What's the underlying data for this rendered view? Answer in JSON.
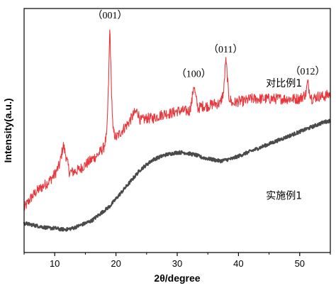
{
  "chart_data": {
    "type": "line",
    "title": "",
    "xlabel": "2θ/degree",
    "ylabel": "Intensity(a.u.)",
    "xlim": [
      5,
      55
    ],
    "xticks": [
      10,
      20,
      30,
      40,
      50
    ],
    "ylim": [
      0,
      100
    ],
    "y_tick_labels_shown": false,
    "grid": false,
    "legend": "none",
    "series": [
      {
        "name": "对比例1",
        "color": "#e8383d",
        "noise": 2.2,
        "values": [
          [
            5,
            18
          ],
          [
            6,
            22
          ],
          [
            7,
            25
          ],
          [
            8,
            27
          ],
          [
            9,
            29
          ],
          [
            10,
            32
          ],
          [
            10.8,
            36
          ],
          [
            11.4,
            44
          ],
          [
            11.8,
            40
          ],
          [
            12.4,
            33
          ],
          [
            13,
            33
          ],
          [
            14,
            34
          ],
          [
            15,
            36
          ],
          [
            16,
            38
          ],
          [
            17,
            40
          ],
          [
            18,
            43
          ],
          [
            18.5,
            48
          ],
          [
            18.8,
            70
          ],
          [
            19.0,
            93
          ],
          [
            19.2,
            72
          ],
          [
            19.5,
            50
          ],
          [
            20,
            47
          ],
          [
            21,
            50
          ],
          [
            22,
            53
          ],
          [
            23,
            57
          ],
          [
            23.5,
            58
          ],
          [
            24,
            54
          ],
          [
            25,
            55
          ],
          [
            26,
            55
          ],
          [
            27,
            56
          ],
          [
            28,
            57
          ],
          [
            29,
            57
          ],
          [
            30,
            58
          ],
          [
            31,
            58
          ],
          [
            32,
            58
          ],
          [
            32.4,
            62
          ],
          [
            32.7,
            69
          ],
          [
            33.0,
            64
          ],
          [
            33.4,
            59
          ],
          [
            34,
            60
          ],
          [
            35,
            60
          ],
          [
            36,
            61
          ],
          [
            37,
            61
          ],
          [
            37.6,
            66
          ],
          [
            37.9,
            79
          ],
          [
            38.1,
            75
          ],
          [
            38.4,
            64
          ],
          [
            39,
            61
          ],
          [
            40,
            62
          ],
          [
            41,
            62
          ],
          [
            42,
            63
          ],
          [
            43,
            63
          ],
          [
            44,
            63
          ],
          [
            45,
            63
          ],
          [
            46,
            63
          ],
          [
            47,
            63
          ],
          [
            48,
            63
          ],
          [
            49,
            63
          ],
          [
            50,
            63
          ],
          [
            51,
            65
          ],
          [
            51.3,
            70
          ],
          [
            51.6,
            66
          ],
          [
            52,
            63
          ],
          [
            53,
            64
          ],
          [
            54,
            64
          ],
          [
            55,
            65
          ]
        ]
      },
      {
        "name": "实施例1",
        "color": "#4a4a4a",
        "noise": 0.7,
        "values": [
          [
            5,
            12
          ],
          [
            6,
            11.5
          ],
          [
            7,
            11
          ],
          [
            8,
            10.5
          ],
          [
            9,
            10
          ],
          [
            10,
            10
          ],
          [
            11,
            9.5
          ],
          [
            12,
            9.5
          ],
          [
            13,
            10
          ],
          [
            14,
            11
          ],
          [
            15,
            12
          ],
          [
            16,
            13
          ],
          [
            17,
            15
          ],
          [
            18,
            17
          ],
          [
            19,
            19
          ],
          [
            20,
            22
          ],
          [
            21,
            25
          ],
          [
            22,
            28
          ],
          [
            23,
            31
          ],
          [
            24,
            34
          ],
          [
            25,
            36
          ],
          [
            26,
            38
          ],
          [
            27,
            39
          ],
          [
            28,
            40
          ],
          [
            29,
            40.5
          ],
          [
            30,
            41
          ],
          [
            31,
            41
          ],
          [
            32,
            40.5
          ],
          [
            33,
            40
          ],
          [
            34,
            39
          ],
          [
            35,
            38.5
          ],
          [
            36,
            38
          ],
          [
            37,
            37.5
          ],
          [
            38,
            38
          ],
          [
            39,
            38.5
          ],
          [
            40,
            39.5
          ],
          [
            41,
            40.5
          ],
          [
            42,
            41.5
          ],
          [
            43,
            42.5
          ],
          [
            44,
            43.5
          ],
          [
            45,
            44.5
          ],
          [
            46,
            45.5
          ],
          [
            47,
            46.5
          ],
          [
            48,
            47.5
          ],
          [
            49,
            48.5
          ],
          [
            50,
            49.5
          ],
          [
            51,
            50.5
          ],
          [
            52,
            51.5
          ],
          [
            53,
            52.5
          ],
          [
            54,
            53.5
          ],
          [
            55,
            54
          ]
        ]
      }
    ],
    "annotations": [
      {
        "text": "（001）",
        "x": 19.0,
        "y": 96
      },
      {
        "text": "（100）",
        "x": 32.7,
        "y": 72
      },
      {
        "text": "（011）",
        "x": 37.9,
        "y": 82
      },
      {
        "text": "（012）",
        "x": 51.3,
        "y": 73
      }
    ],
    "series_labels": [
      {
        "text": "对比例1",
        "x": 44.5,
        "y": 68
      },
      {
        "text": "实施例1",
        "x": 44.5,
        "y": 22
      }
    ]
  }
}
